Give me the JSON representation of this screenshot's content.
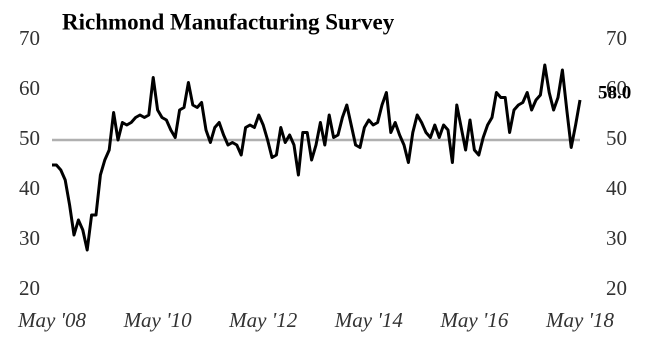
{
  "chart_data": {
    "type": "line",
    "title": "Richmond Manufacturing Survey",
    "categories": [
      "May '08",
      null,
      null,
      null,
      null,
      null,
      null,
      null,
      null,
      null,
      null,
      null,
      null,
      null,
      null,
      null,
      null,
      null,
      null,
      null,
      null,
      null,
      null,
      null,
      "May '10",
      null,
      null,
      null,
      null,
      null,
      null,
      null,
      null,
      null,
      null,
      null,
      null,
      null,
      null,
      null,
      null,
      null,
      null,
      null,
      null,
      null,
      null,
      null,
      "May '12",
      null,
      null,
      null,
      null,
      null,
      null,
      null,
      null,
      null,
      null,
      null,
      null,
      null,
      null,
      null,
      null,
      null,
      null,
      null,
      null,
      null,
      null,
      null,
      "May '14",
      null,
      null,
      null,
      null,
      null,
      null,
      null,
      null,
      null,
      null,
      null,
      null,
      null,
      null,
      null,
      null,
      null,
      null,
      null,
      null,
      null,
      null,
      null,
      "May '16",
      null,
      null,
      null,
      null,
      null,
      null,
      null,
      null,
      null,
      null,
      null,
      null,
      null,
      null,
      null,
      null,
      null,
      null,
      null,
      null,
      null,
      null,
      null,
      "May '18"
    ],
    "series": [
      {
        "name": "Richmond Manufacturing Survey",
        "color": "#000000",
        "values": [
          45,
          45,
          44,
          42,
          37,
          31,
          34,
          32,
          28,
          35,
          35,
          43,
          46,
          48,
          55.5,
          50,
          53.5,
          53,
          53.5,
          54.5,
          55,
          54.5,
          55,
          62.5,
          56,
          54.5,
          54,
          52,
          50.5,
          56,
          56.5,
          61.5,
          57,
          56.5,
          57.5,
          52,
          49.5,
          52.5,
          53.5,
          51,
          49,
          49.5,
          49,
          47,
          52.5,
          53,
          52.5,
          55,
          53,
          50,
          46.5,
          47,
          52.5,
          49.5,
          51,
          49,
          43,
          51.5,
          51.5,
          46,
          49,
          53.5,
          49,
          55,
          50.5,
          51,
          54.5,
          57,
          53,
          49,
          48.5,
          52.5,
          54,
          53,
          53.5,
          57,
          59.5,
          51.5,
          53.5,
          51,
          49,
          45.5,
          51.5,
          55,
          53.5,
          51.5,
          50.5,
          53,
          50.5,
          53,
          52,
          45.5,
          57,
          52.5,
          48,
          54,
          48,
          47,
          50.5,
          53,
          54.5,
          59.5,
          58.5,
          58.5,
          51.5,
          56,
          57,
          57.5,
          59.5,
          56,
          58,
          59,
          65,
          59.5,
          56,
          58.5,
          64,
          56,
          48.5,
          53,
          58
        ],
        "value_labels": [
          null,
          null,
          null,
          null,
          null,
          null,
          null,
          null,
          null,
          null,
          null,
          null,
          null,
          null,
          null,
          null,
          null,
          null,
          null,
          null,
          null,
          null,
          null,
          null,
          null,
          null,
          null,
          null,
          null,
          null,
          null,
          null,
          null,
          null,
          null,
          null,
          null,
          null,
          null,
          null,
          null,
          null,
          null,
          null,
          null,
          null,
          null,
          null,
          null,
          null,
          null,
          null,
          null,
          null,
          null,
          null,
          null,
          null,
          null,
          null,
          null,
          null,
          null,
          null,
          null,
          null,
          null,
          null,
          null,
          null,
          null,
          null,
          null,
          null,
          null,
          null,
          null,
          null,
          null,
          null,
          null,
          null,
          null,
          null,
          null,
          null,
          null,
          null,
          null,
          null,
          null,
          null,
          null,
          null,
          null,
          null,
          null,
          null,
          null,
          null,
          null,
          null,
          null,
          null,
          null,
          null,
          null,
          null,
          null,
          null,
          null,
          null,
          null,
          null,
          null,
          null,
          null,
          null,
          null,
          null,
          "58.0"
        ]
      }
    ],
    "ylim": [
      20,
      70
    ],
    "yticks": [
      20,
      30,
      40,
      50,
      60,
      70
    ],
    "y2lim": [
      20,
      70
    ],
    "y2ticks": [
      20,
      30,
      40,
      50,
      60,
      70
    ],
    "hline": 50,
    "hline_color": "#b0b0b0"
  }
}
